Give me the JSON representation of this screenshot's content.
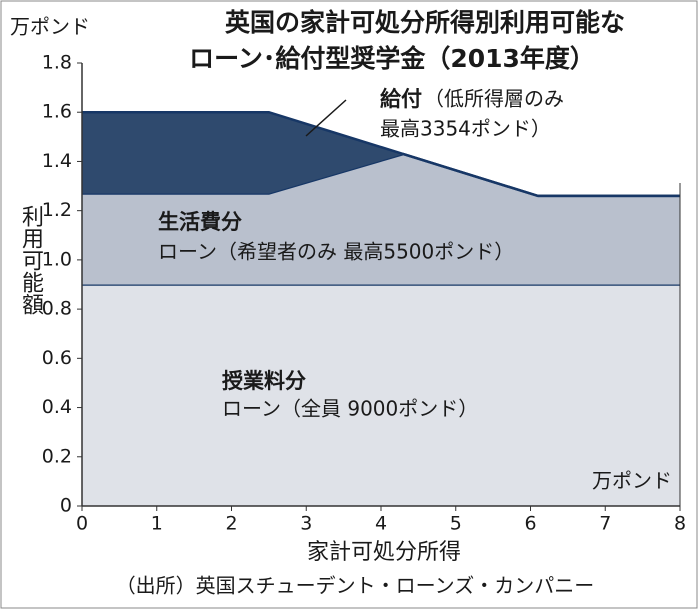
{
  "chart_data": {
    "type": "stacked_area",
    "title": [
      "英国の家計可処分所得別利用可能な",
      "ローン･給付型奨学金（2013年度）"
    ],
    "y_unit": "万ポンド",
    "y_label": "利用可能額",
    "x_label": "家計可処分所得",
    "x_unit": "万ポンド",
    "source": "（出所）英国スチューデント・ローンズ・カンパニー",
    "x": [
      0,
      2.5,
      4.3,
      6.1,
      8
    ],
    "series": [
      {
        "name": "授業料分",
        "note": "ローン（全員 9000ポンド）",
        "color": "#dfe2e8",
        "values": [
          0.9,
          0.9,
          0.9,
          0.9,
          0.9
        ]
      },
      {
        "name": "生活費分",
        "note": "ローン（希望者のみ 最高5500ポンド）",
        "color": "#b9c0cd",
        "values": [
          0.37,
          0.37,
          0.53,
          0.36,
          0.36
        ]
      },
      {
        "name": "給付",
        "note": [
          "（低所得層のみ",
          "最高3354ポンド）"
        ],
        "color": "#2f4a6e",
        "values": [
          0.33,
          0.33,
          0,
          0,
          0
        ]
      }
    ],
    "xlim": [
      0,
      8
    ],
    "xticks": [
      0,
      1,
      2,
      3,
      4,
      5,
      6,
      7,
      8
    ],
    "ylim": [
      0,
      1.8
    ],
    "yticks": [
      0,
      0.2,
      0.4,
      0.6,
      0.8,
      {
        "value": 1,
        "label": "1.0"
      },
      1.2,
      1.4,
      1.6,
      1.8
    ],
    "line_color": "#173766"
  }
}
